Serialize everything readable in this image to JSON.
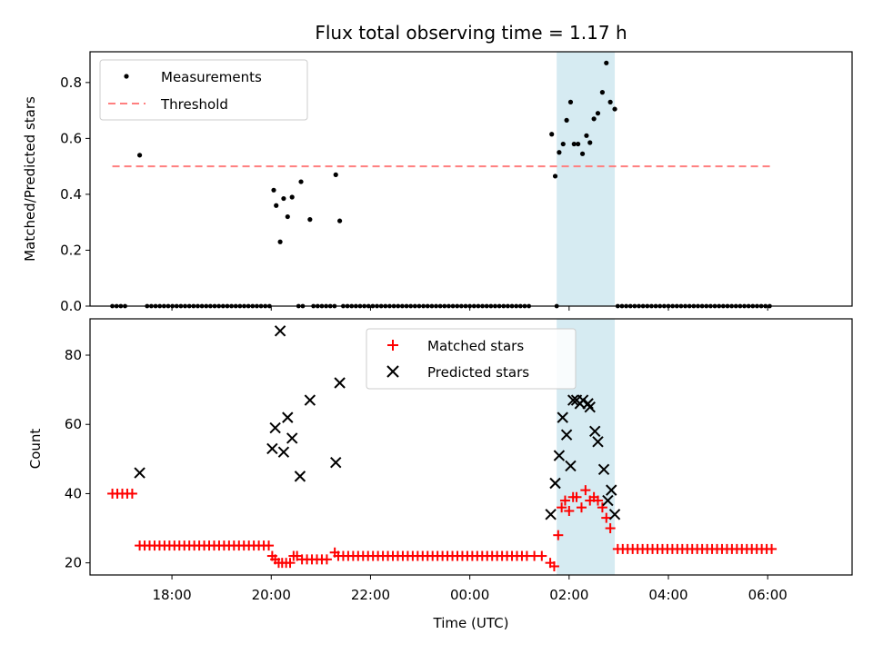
{
  "chart_data": {
    "type": "scatter",
    "title": "Flux total observing time = 1.17 h",
    "shaded_window": {
      "start_hour": 25.75,
      "end_hour": 26.92,
      "color": "#add8e6"
    },
    "x": {
      "label": "Time (UTC)",
      "range_hours": [
        16.35,
        31.7
      ],
      "ticks": [
        {
          "hour": 18,
          "label": "18:00"
        },
        {
          "hour": 20,
          "label": "20:00"
        },
        {
          "hour": 22,
          "label": "22:00"
        },
        {
          "hour": 24,
          "label": "00:00"
        },
        {
          "hour": 26,
          "label": "02:00"
        },
        {
          "hour": 28,
          "label": "04:00"
        },
        {
          "hour": 30,
          "label": "06:00"
        }
      ]
    },
    "top_panel": {
      "ylabel": "Matched/Predicted stars",
      "ylim": [
        0,
        0.91
      ],
      "yticks": [
        {
          "v": 0.0,
          "label": "0.0"
        },
        {
          "v": 0.2,
          "label": "0.2"
        },
        {
          "v": 0.4,
          "label": "0.4"
        },
        {
          "v": 0.6,
          "label": "0.6"
        },
        {
          "v": 0.8,
          "label": "0.8"
        }
      ],
      "legend": [
        {
          "name": "Measurements",
          "color": "#000000"
        },
        {
          "name": "Threshold",
          "color": "#ff7f7f"
        }
      ],
      "threshold": {
        "value": 0.5,
        "x_start": 16.8,
        "x_end": 30.05
      },
      "zero_segments": [
        [
          16.8,
          17.1
        ],
        [
          17.5,
          19.98
        ],
        [
          20.55,
          20.7
        ],
        [
          20.85,
          21.3
        ],
        [
          21.45,
          25.2
        ],
        [
          25.75,
          25.75
        ],
        [
          26.98,
          30.1
        ]
      ],
      "measurements": [
        [
          17.35,
          0.54
        ],
        [
          20.05,
          0.415
        ],
        [
          20.1,
          0.36
        ],
        [
          20.18,
          0.23
        ],
        [
          20.25,
          0.385
        ],
        [
          20.33,
          0.32
        ],
        [
          20.42,
          0.39
        ],
        [
          20.6,
          0.445
        ],
        [
          20.78,
          0.31
        ],
        [
          21.3,
          0.47
        ],
        [
          21.38,
          0.305
        ],
        [
          25.65,
          0.615
        ],
        [
          25.72,
          0.465
        ],
        [
          25.8,
          0.55
        ],
        [
          25.88,
          0.58
        ],
        [
          25.95,
          0.665
        ],
        [
          26.03,
          0.73
        ],
        [
          26.1,
          0.58
        ],
        [
          26.18,
          0.58
        ],
        [
          26.27,
          0.545
        ],
        [
          26.35,
          0.61
        ],
        [
          26.42,
          0.585
        ],
        [
          26.5,
          0.67
        ],
        [
          26.58,
          0.69
        ],
        [
          26.67,
          0.765
        ],
        [
          26.75,
          0.87
        ],
        [
          26.83,
          0.73
        ],
        [
          26.92,
          0.705
        ]
      ]
    },
    "bottom_panel": {
      "ylabel": "Count",
      "ylim": [
        16.5,
        90.5
      ],
      "yticks": [
        {
          "v": 20,
          "label": "20"
        },
        {
          "v": 40,
          "label": "40"
        },
        {
          "v": 60,
          "label": "60"
        },
        {
          "v": 80,
          "label": "80"
        }
      ],
      "legend": [
        {
          "name": "Matched stars",
          "color": "#ff0000",
          "marker": "+"
        },
        {
          "name": "Predicted stars",
          "color": "#000000",
          "marker": "x"
        }
      ],
      "matched_segments": [
        {
          "start": 16.8,
          "end": 17.25,
          "step": 0.1,
          "value": 40
        },
        {
          "start": 17.35,
          "end": 19.95,
          "step": 0.1,
          "value": 25
        },
        {
          "start": 20.62,
          "end": 21.2,
          "step": 0.1,
          "value": 21
        },
        {
          "start": 21.35,
          "end": 25.2,
          "step": 0.1,
          "value": 22
        },
        {
          "start": 26.98,
          "end": 30.1,
          "step": 0.1,
          "value": 24
        }
      ],
      "matched_points": [
        [
          20.02,
          22
        ],
        [
          20.08,
          21
        ],
        [
          20.15,
          20
        ],
        [
          20.22,
          20
        ],
        [
          20.3,
          20
        ],
        [
          20.38,
          20
        ],
        [
          20.45,
          22
        ],
        [
          20.52,
          22
        ],
        [
          21.28,
          23
        ],
        [
          25.3,
          22
        ],
        [
          25.45,
          22
        ],
        [
          25.62,
          20
        ],
        [
          25.7,
          19
        ],
        [
          25.78,
          28
        ],
        [
          25.85,
          36
        ],
        [
          25.92,
          38
        ],
        [
          26.0,
          35
        ],
        [
          26.08,
          39
        ],
        [
          26.15,
          39
        ],
        [
          26.25,
          36
        ],
        [
          26.33,
          41
        ],
        [
          26.42,
          38
        ],
        [
          26.5,
          39
        ],
        [
          26.58,
          38
        ],
        [
          26.67,
          36
        ],
        [
          26.75,
          33
        ],
        [
          26.83,
          30
        ]
      ],
      "predicted_points": [
        [
          17.35,
          46
        ],
        [
          20.02,
          53
        ],
        [
          20.08,
          59
        ],
        [
          20.18,
          87
        ],
        [
          20.25,
          52
        ],
        [
          20.33,
          62
        ],
        [
          20.42,
          56
        ],
        [
          20.58,
          45
        ],
        [
          20.78,
          67
        ],
        [
          21.3,
          49
        ],
        [
          21.38,
          72
        ],
        [
          25.63,
          34
        ],
        [
          25.72,
          43
        ],
        [
          25.8,
          51
        ],
        [
          25.87,
          62
        ],
        [
          25.95,
          57
        ],
        [
          26.03,
          48
        ],
        [
          26.08,
          67
        ],
        [
          26.15,
          67
        ],
        [
          26.22,
          66
        ],
        [
          26.28,
          67
        ],
        [
          26.38,
          66
        ],
        [
          26.42,
          65
        ],
        [
          26.52,
          58
        ],
        [
          26.58,
          55
        ],
        [
          26.7,
          47
        ],
        [
          26.78,
          38
        ],
        [
          26.85,
          41
        ],
        [
          26.92,
          34
        ]
      ]
    }
  }
}
